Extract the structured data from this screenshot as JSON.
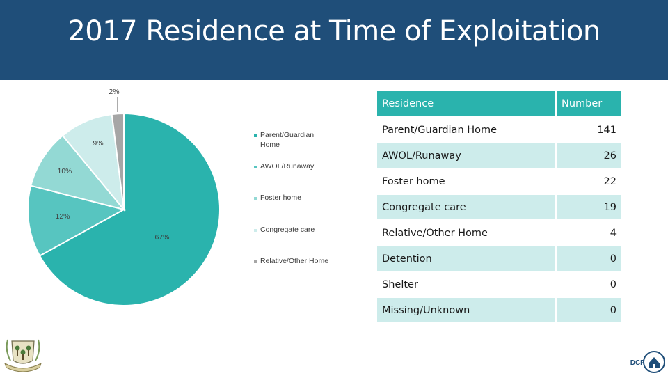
{
  "title": "2017 Residence at Time of Exploitation",
  "chart_data": {
    "type": "pie",
    "slices": [
      {
        "label": "Parent/Guardian Home",
        "value": 67,
        "pct_label": "67%",
        "color": "#2ab3ad"
      },
      {
        "label": "AWOL/Runaway",
        "value": 12,
        "pct_label": "12%",
        "color": "#57c5c0"
      },
      {
        "label": "Foster home",
        "value": 10,
        "pct_label": "10%",
        "color": "#93d9d4"
      },
      {
        "label": "Congregate care",
        "value": 9,
        "pct_label": "9%",
        "color": "#cdeceb"
      },
      {
        "label": "Relative/Other Home",
        "value": 2,
        "pct_label": "2%",
        "color": "#a6a6a6"
      }
    ],
    "legend": [
      {
        "label": "Parent/Guardian Home",
        "color": "#2ab3ad"
      },
      {
        "label": "AWOL/Runaway",
        "color": "#57c5c0"
      },
      {
        "label": "Foster home",
        "color": "#93d9d4"
      },
      {
        "label": "Congregate care",
        "color": "#cdeceb"
      },
      {
        "label": "Relative/Other Home",
        "color": "#a6a6a6"
      }
    ],
    "legend_position": "right"
  },
  "table": {
    "headers": [
      "Residence",
      "Number"
    ],
    "rows": [
      {
        "residence": "Parent/Guardian Home",
        "number": "141"
      },
      {
        "residence": "AWOL/Runaway",
        "number": "26"
      },
      {
        "residence": "Foster home",
        "number": "22"
      },
      {
        "residence": "Congregate care",
        "number": "19"
      },
      {
        "residence": "Relative/Other Home",
        "number": "4"
      },
      {
        "residence": "Detention",
        "number": "0"
      },
      {
        "residence": "Shelter",
        "number": "0"
      },
      {
        "residence": "Missing/Unknown",
        "number": "0"
      }
    ]
  },
  "logos": {
    "seal_icon": "state-seal-icon",
    "dcf_icon": "dcf-logo-icon",
    "dcf_text": "DCF"
  }
}
